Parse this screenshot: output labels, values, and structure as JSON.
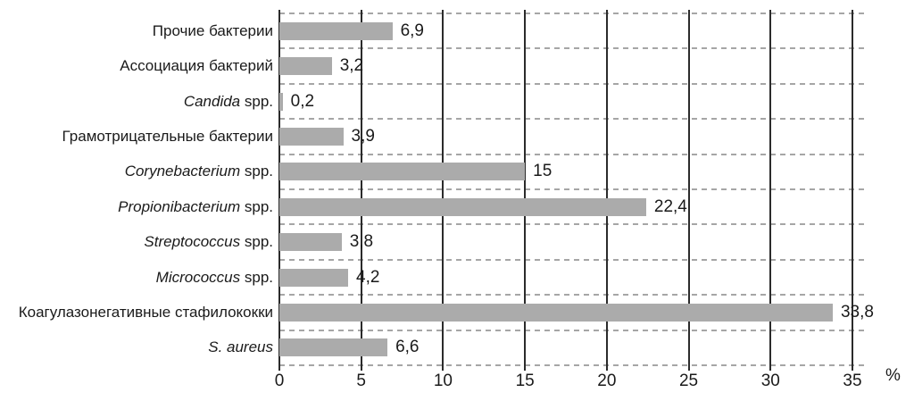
{
  "chart_data": {
    "type": "bar",
    "orientation": "horizontal",
    "title": "",
    "xlabel": "%",
    "ylabel": "",
    "xlim": [
      0,
      35
    ],
    "x_ticks": [
      0,
      5,
      10,
      15,
      20,
      25,
      30,
      35
    ],
    "grid": {
      "vertical": "solid",
      "horizontal": "dashed",
      "legend": "none"
    },
    "categories": [
      {
        "parts": [
          {
            "text": "Прочие бактерии",
            "italic": false
          }
        ]
      },
      {
        "parts": [
          {
            "text": "Ассоциация бактерий",
            "italic": false
          }
        ]
      },
      {
        "parts": [
          {
            "text": "Candida",
            "italic": true
          },
          {
            "text": " spp.",
            "italic": false
          }
        ]
      },
      {
        "parts": [
          {
            "text": "Грамотрицательные бактерии",
            "italic": false
          }
        ]
      },
      {
        "parts": [
          {
            "text": "Corynebacterium",
            "italic": true
          },
          {
            "text": " spp.",
            "italic": false
          }
        ]
      },
      {
        "parts": [
          {
            "text": "Propionibacterium",
            "italic": true
          },
          {
            "text": " spp.",
            "italic": false
          }
        ]
      },
      {
        "parts": [
          {
            "text": "Streptococcus",
            "italic": true
          },
          {
            "text": " spp.",
            "italic": false
          }
        ]
      },
      {
        "parts": [
          {
            "text": "Micrococcus",
            "italic": true
          },
          {
            "text": " spp.",
            "italic": false
          }
        ]
      },
      {
        "parts": [
          {
            "text": "Коагулазонегативные стафилококки",
            "italic": false
          }
        ]
      },
      {
        "parts": [
          {
            "text": "S. aureus",
            "italic": true
          }
        ]
      }
    ],
    "values": [
      6.9,
      3.2,
      0.2,
      3.9,
      15,
      22.4,
      3.8,
      4.2,
      33.8,
      6.6
    ],
    "value_labels": [
      "6,9",
      "3,2",
      "0,2",
      "3,9",
      "15",
      "22,4",
      "3,8",
      "4,2",
      "33,8",
      "6,6"
    ],
    "colors": {
      "bar": "#ababab",
      "gridline": "#2b2b2b",
      "dashed": "#a6a6a6",
      "text": "#1a1a1a",
      "background": "#ffffff"
    }
  }
}
